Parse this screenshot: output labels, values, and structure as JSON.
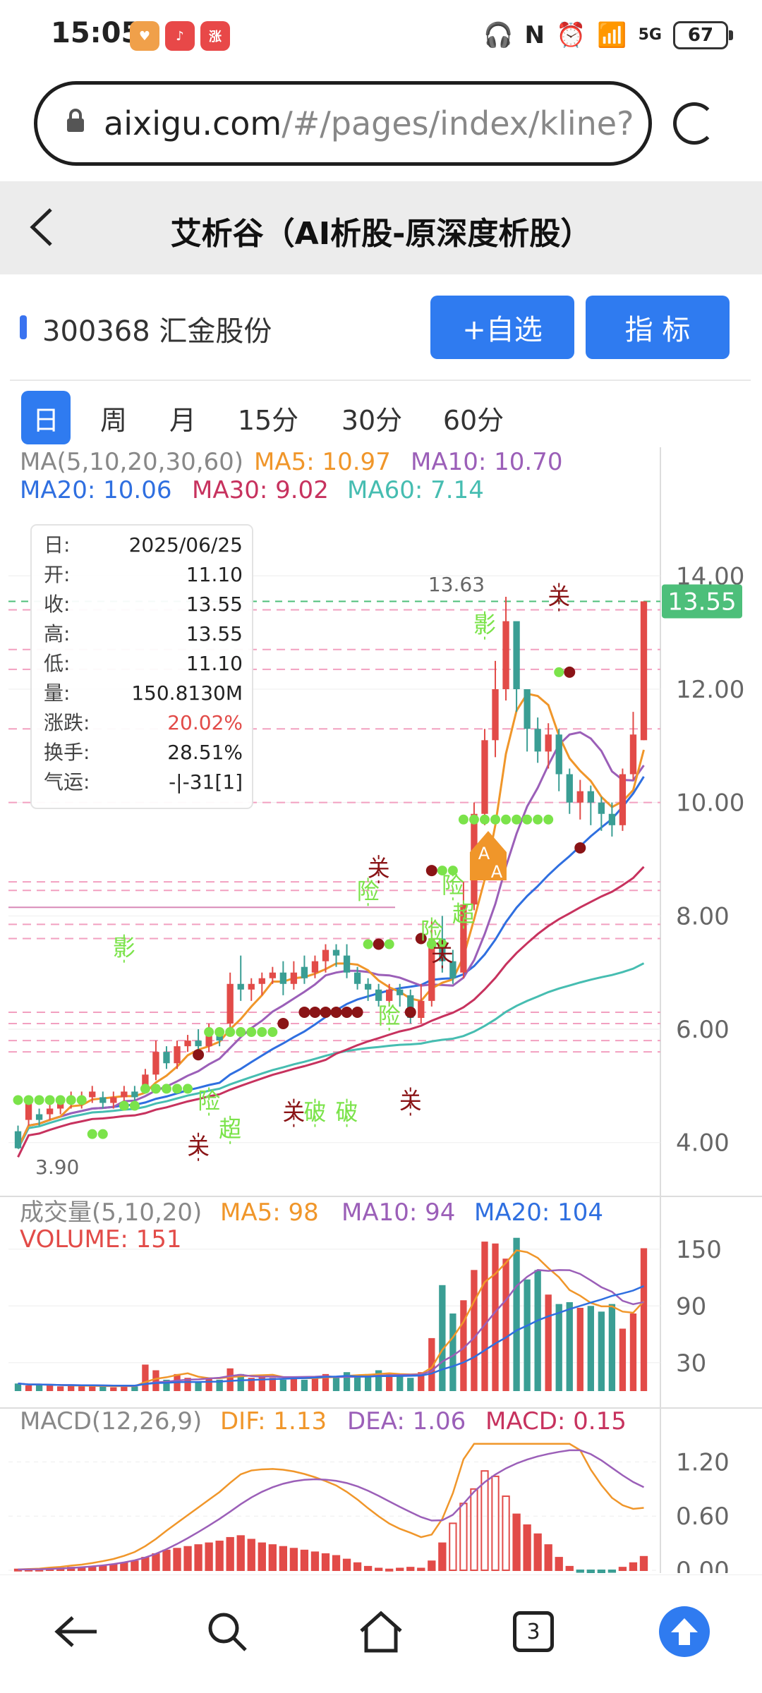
{
  "status": {
    "time": "15:05",
    "battery": "67",
    "signal_label": "5G"
  },
  "status_app_icons": [
    {
      "name": "heart-app-icon",
      "color": "#f0a04a",
      "text": "♥"
    },
    {
      "name": "music-app-icon",
      "color": "#e84848",
      "text": "♪"
    },
    {
      "name": "zhang-app-icon",
      "color": "#e84848",
      "text": "涨"
    }
  ],
  "browser": {
    "url_host": "aixigu.com",
    "url_path": "/#/pages/index/kline?"
  },
  "header": {
    "back_icon": "‹",
    "title": "艾析谷（AI析股-原深度析股）"
  },
  "stock": {
    "code_name": "300368 汇金股份",
    "add_watch_label": "+自选",
    "indicator_label": "指  标"
  },
  "periods": [
    "日",
    "周",
    "月",
    "15分",
    "30分",
    "60分"
  ],
  "active_period": 0,
  "nav": {
    "tab_count": "3"
  },
  "colors": {
    "up": "#e24b48",
    "down": "#3a9e94",
    "ma5": "#f0962a",
    "ma10": "#9b5fb8",
    "ma20": "#2f6fe0",
    "ma30": "#c7325e",
    "ma60": "#46bdb1",
    "accent": "#2f7bf0",
    "signal_green": "#7be34a",
    "signal_dark": "#8a1416",
    "price_tag": "#4dbf7a"
  },
  "chart_data": [
    {
      "type": "candlestick",
      "title": "MA(5,10,20,30,60)",
      "legend": [
        {
          "label": "MA5: 10.97",
          "color_key": "ma5"
        },
        {
          "label": "MA10: 10.70",
          "color_key": "ma10"
        },
        {
          "label": "MA20: 10.06",
          "color_key": "ma20"
        },
        {
          "label": "MA30: 9.02",
          "color_key": "ma30"
        },
        {
          "label": "MA60: 7.14",
          "color_key": "ma60"
        }
      ],
      "y_ticks": [
        "14.00",
        "12.00",
        "10.00",
        "8.00",
        "6.00",
        "4.00"
      ],
      "ylim": [
        3.2,
        14.9
      ],
      "current_price": "13.55",
      "high_label": "13.63",
      "low_label": "3.90",
      "tooltip": [
        {
          "k": "日:",
          "v": "2025/06/25"
        },
        {
          "k": "开:",
          "v": "11.10"
        },
        {
          "k": "收:",
          "v": "13.55"
        },
        {
          "k": "高:",
          "v": "13.55"
        },
        {
          "k": "低:",
          "v": "11.10"
        },
        {
          "k": "量:",
          "v": "150.8130M"
        },
        {
          "k": "涨跌:",
          "v": "20.02%"
        },
        {
          "k": "换手:",
          "v": "28.51%"
        },
        {
          "k": "气运:",
          "v": "-|-31[1]"
        }
      ],
      "candles": [
        [
          4.2,
          3.9,
          4.3,
          3.9
        ],
        [
          4.4,
          4.7,
          4.8,
          4.3
        ],
        [
          4.5,
          4.4,
          4.6,
          4.3
        ],
        [
          4.5,
          4.6,
          4.7,
          4.4
        ],
        [
          4.6,
          4.7,
          4.8,
          4.5
        ],
        [
          4.7,
          4.8,
          4.9,
          4.6
        ],
        [
          4.7,
          4.8,
          4.9,
          4.6
        ],
        [
          4.8,
          4.9,
          5.0,
          4.7
        ],
        [
          4.8,
          4.7,
          4.9,
          4.6
        ],
        [
          4.7,
          4.8,
          4.9,
          4.6
        ],
        [
          4.8,
          4.9,
          5.0,
          4.7
        ],
        [
          4.9,
          4.8,
          5.0,
          4.7
        ],
        [
          5.0,
          5.2,
          5.3,
          4.9
        ],
        [
          5.2,
          5.6,
          5.8,
          5.1
        ],
        [
          5.6,
          5.4,
          5.7,
          5.3
        ],
        [
          5.4,
          5.7,
          5.8,
          5.3
        ],
        [
          5.7,
          5.8,
          5.9,
          5.6
        ],
        [
          5.8,
          5.7,
          6.0,
          5.6
        ],
        [
          5.7,
          5.9,
          6.1,
          5.6
        ],
        [
          5.9,
          5.8,
          6.0,
          5.7
        ],
        [
          6.1,
          6.8,
          7.0,
          6.0
        ],
        [
          6.8,
          6.7,
          7.3,
          6.5
        ],
        [
          6.7,
          6.8,
          6.9,
          6.5
        ],
        [
          6.8,
          6.9,
          7.0,
          6.6
        ],
        [
          6.9,
          7.0,
          7.1,
          6.8
        ],
        [
          7.0,
          6.8,
          7.2,
          6.6
        ],
        [
          6.8,
          7.0,
          7.2,
          6.7
        ],
        [
          7.1,
          6.9,
          7.3,
          6.8
        ],
        [
          7.0,
          7.2,
          7.3,
          6.9
        ],
        [
          7.2,
          7.4,
          7.5,
          7.0
        ],
        [
          7.4,
          7.3,
          7.5,
          7.1
        ],
        [
          7.3,
          7.0,
          7.5,
          6.9
        ],
        [
          7.0,
          6.8,
          7.1,
          6.7
        ],
        [
          6.8,
          6.7,
          6.9,
          6.5
        ],
        [
          6.7,
          6.5,
          6.8,
          6.4
        ],
        [
          6.5,
          6.7,
          6.8,
          6.4
        ],
        [
          6.7,
          6.6,
          6.8,
          6.4
        ],
        [
          6.6,
          6.2,
          6.7,
          6.1
        ],
        [
          6.2,
          6.5,
          6.8,
          6.1
        ],
        [
          6.5,
          7.6,
          7.9,
          6.4
        ],
        [
          7.6,
          7.2,
          8.0,
          7.0
        ],
        [
          7.2,
          6.9,
          7.4,
          6.8
        ],
        [
          7.0,
          8.2,
          8.6,
          6.9
        ],
        [
          8.2,
          9.8,
          10.0,
          8.1
        ],
        [
          9.8,
          11.1,
          11.3,
          9.6
        ],
        [
          11.1,
          12.0,
          12.5,
          10.8
        ],
        [
          12.0,
          13.2,
          13.63,
          11.8
        ],
        [
          13.2,
          12.0,
          13.0,
          11.6
        ],
        [
          12.0,
          11.3,
          11.8,
          10.9
        ],
        [
          11.3,
          10.9,
          11.5,
          10.7
        ],
        [
          10.9,
          11.2,
          11.4,
          10.6
        ],
        [
          11.2,
          10.5,
          11.3,
          10.2
        ],
        [
          10.5,
          10.0,
          10.6,
          9.8
        ],
        [
          10.0,
          10.2,
          10.4,
          9.7
        ],
        [
          10.2,
          10.0,
          10.3,
          9.6
        ],
        [
          10.0,
          9.8,
          10.1,
          9.5
        ],
        [
          9.8,
          9.6,
          10.0,
          9.4
        ],
        [
          9.6,
          10.5,
          10.6,
          9.5
        ],
        [
          10.5,
          11.2,
          11.6,
          10.4
        ],
        [
          11.1,
          13.55,
          13.55,
          11.1
        ]
      ],
      "signals_text": [
        {
          "t": "影",
          "i": 10,
          "y": 7.3,
          "c": "signal_green"
        },
        {
          "t": "险",
          "i": 18,
          "y": 4.6,
          "c": "signal_green"
        },
        {
          "t": "超",
          "i": 20,
          "y": 4.1,
          "c": "signal_green"
        },
        {
          "t": "关",
          "i": 17,
          "y": 3.8,
          "c": "signal_dark"
        },
        {
          "t": "关",
          "i": 26,
          "y": 4.4,
          "c": "signal_dark"
        },
        {
          "t": "破",
          "i": 28,
          "y": 4.4,
          "c": "signal_green"
        },
        {
          "t": "破",
          "i": 31,
          "y": 4.4,
          "c": "signal_green"
        },
        {
          "t": "险",
          "i": 33,
          "y": 8.3,
          "c": "signal_green"
        },
        {
          "t": "关",
          "i": 34,
          "y": 8.7,
          "c": "signal_dark"
        },
        {
          "t": "险",
          "i": 35,
          "y": 6.1,
          "c": "signal_green"
        },
        {
          "t": "关",
          "i": 37,
          "y": 4.6,
          "c": "signal_dark"
        },
        {
          "t": "险",
          "i": 39,
          "y": 7.6,
          "c": "signal_green"
        },
        {
          "t": "关",
          "i": 40,
          "y": 7.2,
          "c": "signal_dark"
        },
        {
          "t": "险",
          "i": 41,
          "y": 8.4,
          "c": "signal_green"
        },
        {
          "t": "超",
          "i": 42,
          "y": 7.9,
          "c": "signal_green"
        },
        {
          "t": "影",
          "i": 44,
          "y": 13.0,
          "c": "signal_green"
        },
        {
          "t": "关",
          "i": 51,
          "y": 13.5,
          "c": "signal_dark"
        }
      ],
      "markers": {
        "A_label": "A"
      }
    },
    {
      "type": "bar",
      "title": "成交量(5,10,20)",
      "legend": [
        {
          "label": "MA5: 98",
          "color_key": "ma5"
        },
        {
          "label": "MA10: 94",
          "color_key": "ma10"
        },
        {
          "label": "MA20: 104",
          "color_key": "ma20"
        }
      ],
      "sub_title": "VOLUME: 151",
      "y_ticks": [
        "150",
        "90",
        "30"
      ],
      "values": [
        8,
        6,
        7,
        6,
        5,
        6,
        5,
        6,
        5,
        4,
        6,
        5,
        28,
        22,
        12,
        18,
        14,
        10,
        14,
        12,
        24,
        18,
        14,
        16,
        14,
        12,
        14,
        12,
        16,
        18,
        14,
        20,
        16,
        18,
        22,
        18,
        16,
        14,
        20,
        56,
        112,
        82,
        96,
        128,
        158,
        156,
        140,
        162,
        118,
        128,
        102,
        92,
        94,
        88,
        90,
        84,
        92,
        66,
        82,
        151
      ],
      "ylim": [
        0,
        170
      ]
    },
    {
      "type": "bar",
      "title": "MACD(12,26,9)",
      "legend": [
        {
          "label": "DIF: 1.13",
          "color_key": "ma5"
        },
        {
          "label": "DEA: 1.06",
          "color_key": "ma10"
        },
        {
          "label": "MACD: 0.15",
          "color_key": "ma30"
        }
      ],
      "y_ticks": [
        "1.20",
        "0.60",
        "0.00"
      ],
      "values": [
        0.01,
        0.01,
        0.01,
        0.02,
        0.02,
        0.03,
        0.03,
        0.04,
        0.05,
        0.06,
        0.08,
        0.1,
        0.14,
        0.18,
        0.22,
        0.24,
        0.26,
        0.28,
        0.3,
        0.32,
        0.36,
        0.38,
        0.34,
        0.3,
        0.28,
        0.26,
        0.24,
        0.22,
        0.2,
        0.18,
        0.16,
        0.12,
        0.08,
        0.04,
        0.02,
        0.01,
        0.02,
        0.03,
        0.02,
        0.1,
        0.3,
        0.52,
        0.74,
        0.9,
        1.1,
        1.04,
        0.82,
        0.62,
        0.5,
        0.4,
        0.28,
        0.14,
        0.04,
        -0.02,
        -0.04,
        -0.03,
        -0.02,
        0.03,
        0.08,
        0.15
      ],
      "ylim": [
        0,
        1.5
      ]
    }
  ]
}
